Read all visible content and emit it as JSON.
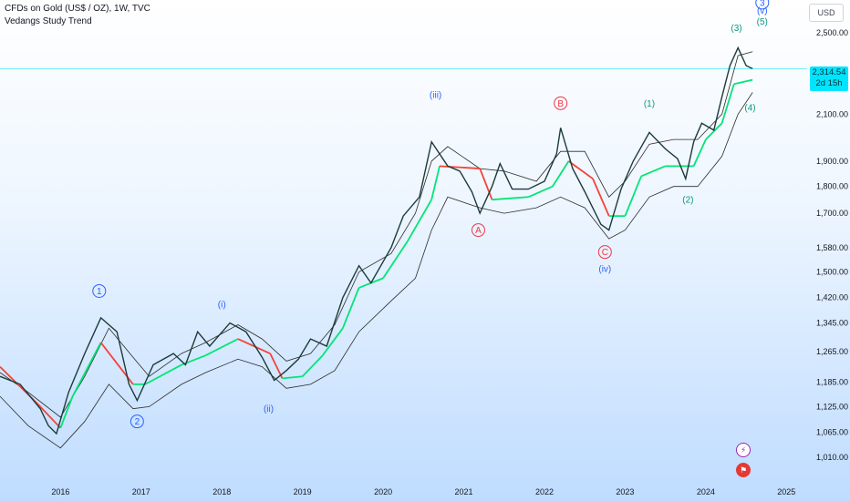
{
  "header": {
    "symbol": "CFDs on Gold (US$ / OZ), 1W, TVC",
    "indicator": "Vedangs Study Trend",
    "currency": "USD"
  },
  "price_badge": {
    "price": "2,314.54",
    "countdown": "2d 15h",
    "color": "#00e5ff"
  },
  "icons": {
    "event_top": "lightning-icon",
    "event_bottom": "us-flag-icon"
  },
  "colors": {
    "candle": "#1c3a3a",
    "trend_up": "#00e676",
    "trend_down": "#f44336",
    "channel": "#2b2b2b",
    "wave_blue": "#2962ff",
    "wave_teal": "#089981",
    "wave_red": "#f23645"
  },
  "chart_data": {
    "type": "line",
    "title": "CFDs on Gold (US$ / OZ), 1W, TVC",
    "ylabel": "USD",
    "y_scale": "log",
    "ylim": [
      960,
      2680
    ],
    "xlim": [
      2015.25,
      2025.2
    ],
    "y_ticks": [
      "2,500.00",
      "2,100.00",
      "1,900.00",
      "1,800.00",
      "1,700.00",
      "1,580.00",
      "1,500.00",
      "1,420.00",
      "1,345.00",
      "1,265.00",
      "1,185.00",
      "1,125.00",
      "1,065.00",
      "1,010.00"
    ],
    "y_tick_values": [
      2500,
      2100,
      1900,
      1800,
      1700,
      1580,
      1500,
      1420,
      1345,
      1265,
      1185,
      1125,
      1065,
      1010
    ],
    "x_ticks": [
      "2016",
      "2017",
      "2018",
      "2019",
      "2020",
      "2021",
      "2022",
      "2023",
      "2024",
      "2025"
    ],
    "x_tick_values": [
      2016,
      2017,
      2018,
      2019,
      2020,
      2021,
      2022,
      2023,
      2024,
      2025
    ],
    "last_price": 2314.54,
    "price_line": [
      [
        2015.25,
        1200
      ],
      [
        2015.5,
        1180
      ],
      [
        2015.75,
        1120
      ],
      [
        2015.85,
        1080
      ],
      [
        2015.95,
        1062
      ],
      [
        2016.1,
        1160
      ],
      [
        2016.3,
        1260
      ],
      [
        2016.5,
        1360
      ],
      [
        2016.7,
        1320
      ],
      [
        2016.85,
        1180
      ],
      [
        2016.95,
        1140
      ],
      [
        2017.15,
        1230
      ],
      [
        2017.4,
        1260
      ],
      [
        2017.55,
        1230
      ],
      [
        2017.7,
        1320
      ],
      [
        2017.85,
        1280
      ],
      [
        2018.1,
        1345
      ],
      [
        2018.3,
        1320
      ],
      [
        2018.5,
        1250
      ],
      [
        2018.65,
        1190
      ],
      [
        2018.8,
        1215
      ],
      [
        2018.95,
        1245
      ],
      [
        2019.1,
        1300
      ],
      [
        2019.3,
        1280
      ],
      [
        2019.5,
        1420
      ],
      [
        2019.7,
        1520
      ],
      [
        2019.85,
        1465
      ],
      [
        2020.1,
        1580
      ],
      [
        2020.25,
        1690
      ],
      [
        2020.45,
        1760
      ],
      [
        2020.6,
        1980
      ],
      [
        2020.8,
        1880
      ],
      [
        2020.95,
        1860
      ],
      [
        2021.1,
        1780
      ],
      [
        2021.2,
        1700
      ],
      [
        2021.35,
        1800
      ],
      [
        2021.45,
        1890
      ],
      [
        2021.6,
        1790
      ],
      [
        2021.8,
        1790
      ],
      [
        2022.0,
        1820
      ],
      [
        2022.15,
        1930
      ],
      [
        2022.2,
        2040
      ],
      [
        2022.35,
        1870
      ],
      [
        2022.5,
        1780
      ],
      [
        2022.7,
        1660
      ],
      [
        2022.8,
        1640
      ],
      [
        2022.95,
        1790
      ],
      [
        2023.1,
        1900
      ],
      [
        2023.3,
        2020
      ],
      [
        2023.5,
        1950
      ],
      [
        2023.65,
        1910
      ],
      [
        2023.75,
        1830
      ],
      [
        2023.85,
        1980
      ],
      [
        2023.95,
        2060
      ],
      [
        2024.1,
        2030
      ],
      [
        2024.2,
        2180
      ],
      [
        2024.3,
        2330
      ],
      [
        2024.4,
        2420
      ],
      [
        2024.5,
        2330
      ],
      [
        2024.58,
        2314.54
      ]
    ],
    "trend_line": [
      [
        2015.25,
        1225
      ],
      [
        2015.7,
        1135
      ],
      [
        2016.0,
        1075
      ],
      [
        2016.15,
        1150
      ],
      [
        2016.5,
        1290
      ],
      [
        2016.9,
        1180
      ],
      [
        2017.05,
        1180
      ],
      [
        2017.5,
        1230
      ],
      [
        2017.8,
        1255
      ],
      [
        2018.2,
        1300
      ],
      [
        2018.6,
        1260
      ],
      [
        2018.75,
        1195
      ],
      [
        2019.0,
        1200
      ],
      [
        2019.25,
        1255
      ],
      [
        2019.5,
        1330
      ],
      [
        2019.7,
        1450
      ],
      [
        2020.0,
        1480
      ],
      [
        2020.3,
        1600
      ],
      [
        2020.6,
        1750
      ],
      [
        2020.7,
        1880
      ],
      [
        2021.2,
        1870
      ],
      [
        2021.35,
        1750
      ],
      [
        2021.8,
        1760
      ],
      [
        2022.1,
        1800
      ],
      [
        2022.3,
        1900
      ],
      [
        2022.6,
        1830
      ],
      [
        2022.8,
        1690
      ],
      [
        2023.0,
        1690
      ],
      [
        2023.2,
        1840
      ],
      [
        2023.5,
        1880
      ],
      [
        2023.85,
        1880
      ],
      [
        2024.0,
        1990
      ],
      [
        2024.2,
        2060
      ],
      [
        2024.35,
        2240
      ],
      [
        2024.58,
        2260
      ]
    ],
    "upper_channel": [
      [
        2015.25,
        1210
      ],
      [
        2015.6,
        1160
      ],
      [
        2016.0,
        1100
      ],
      [
        2016.3,
        1200
      ],
      [
        2016.6,
        1330
      ],
      [
        2016.9,
        1250
      ],
      [
        2017.1,
        1200
      ],
      [
        2017.5,
        1260
      ],
      [
        2017.8,
        1290
      ],
      [
        2018.2,
        1340
      ],
      [
        2018.5,
        1300
      ],
      [
        2018.8,
        1240
      ],
      [
        2019.1,
        1260
      ],
      [
        2019.4,
        1340
      ],
      [
        2019.7,
        1500
      ],
      [
        2020.1,
        1560
      ],
      [
        2020.4,
        1700
      ],
      [
        2020.6,
        1900
      ],
      [
        2020.8,
        1960
      ],
      [
        2021.2,
        1870
      ],
      [
        2021.5,
        1860
      ],
      [
        2021.9,
        1820
      ],
      [
        2022.2,
        1940
      ],
      [
        2022.5,
        1940
      ],
      [
        2022.8,
        1760
      ],
      [
        2023.0,
        1820
      ],
      [
        2023.3,
        1970
      ],
      [
        2023.6,
        1990
      ],
      [
        2023.9,
        1990
      ],
      [
        2024.2,
        2100
      ],
      [
        2024.4,
        2380
      ],
      [
        2024.58,
        2400
      ]
    ],
    "lower_channel": [
      [
        2015.25,
        1150
      ],
      [
        2015.6,
        1080
      ],
      [
        2016.0,
        1030
      ],
      [
        2016.3,
        1090
      ],
      [
        2016.6,
        1180
      ],
      [
        2016.9,
        1120
      ],
      [
        2017.1,
        1125
      ],
      [
        2017.5,
        1180
      ],
      [
        2017.8,
        1210
      ],
      [
        2018.2,
        1245
      ],
      [
        2018.5,
        1225
      ],
      [
        2018.8,
        1170
      ],
      [
        2019.1,
        1180
      ],
      [
        2019.4,
        1215
      ],
      [
        2019.7,
        1320
      ],
      [
        2020.1,
        1410
      ],
      [
        2020.4,
        1480
      ],
      [
        2020.6,
        1640
      ],
      [
        2020.8,
        1760
      ],
      [
        2021.2,
        1720
      ],
      [
        2021.5,
        1700
      ],
      [
        2021.9,
        1720
      ],
      [
        2022.2,
        1760
      ],
      [
        2022.5,
        1720
      ],
      [
        2022.8,
        1610
      ],
      [
        2023.0,
        1640
      ],
      [
        2023.3,
        1760
      ],
      [
        2023.6,
        1800
      ],
      [
        2023.9,
        1800
      ],
      [
        2024.2,
        1920
      ],
      [
        2024.4,
        2100
      ],
      [
        2024.58,
        2200
      ]
    ],
    "annotations": [
      {
        "label": "1",
        "x": 2016.48,
        "y": 1440,
        "color": "#2962ff",
        "circle": true
      },
      {
        "label": "2",
        "x": 2016.95,
        "y": 1090,
        "color": "#2962ff",
        "circle": true
      },
      {
        "label": "(i)",
        "x": 2018.0,
        "y": 1400,
        "color": "#2962ff",
        "circle": false
      },
      {
        "label": "(ii)",
        "x": 2018.58,
        "y": 1120,
        "color": "#2962ff",
        "circle": false
      },
      {
        "label": "(iii)",
        "x": 2020.65,
        "y": 2190,
        "color": "#2962ff",
        "circle": false
      },
      {
        "label": "A",
        "x": 2021.18,
        "y": 1640,
        "color": "#f23645",
        "circle": true
      },
      {
        "label": "B",
        "x": 2022.2,
        "y": 2150,
        "color": "#f23645",
        "circle": true
      },
      {
        "label": "C",
        "x": 2022.75,
        "y": 1565,
        "color": "#f23645",
        "circle": true
      },
      {
        "label": "(iv)",
        "x": 2022.75,
        "y": 1510,
        "color": "#2962ff",
        "circle": false
      },
      {
        "label": "(1)",
        "x": 2023.3,
        "y": 2150,
        "color": "#089981",
        "circle": false
      },
      {
        "label": "(2)",
        "x": 2023.78,
        "y": 1750,
        "color": "#089981",
        "circle": false
      },
      {
        "label": "(3)",
        "x": 2024.38,
        "y": 2525,
        "color": "#089981",
        "circle": false
      },
      {
        "label": "(4)",
        "x": 2024.55,
        "y": 2130,
        "color": "#089981",
        "circle": false
      },
      {
        "label": "(5)",
        "x": 2024.7,
        "y": 2560,
        "color": "#089981",
        "circle": false
      },
      {
        "label": "(v)",
        "x": 2024.7,
        "y": 2620,
        "color": "#2962ff",
        "circle": false
      },
      {
        "label": "3",
        "x": 2024.7,
        "y": 2665,
        "color": "#2962ff",
        "circle": true
      }
    ]
  }
}
